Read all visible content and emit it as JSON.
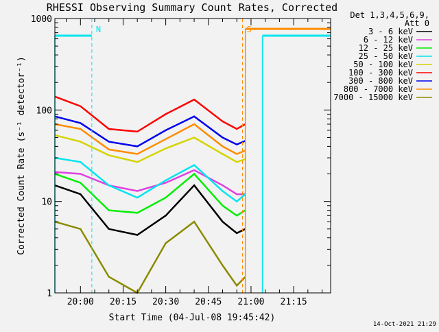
{
  "chart_data": {
    "type": "line",
    "title": "RHESSI Observing Summary Count Rates, Corrected",
    "xlabel": "Start Time (04-Jul-08 19:45:42)",
    "ylabel": "Corrected Count Rate (s⁻¹ detector⁻¹)",
    "y_scale": "log",
    "ylim": [
      1,
      1000
    ],
    "xlim": [
      "19:51",
      "21:28"
    ],
    "x_ticks": [
      "20:00",
      "20:15",
      "20:30",
      "20:45",
      "21:00",
      "21:15"
    ],
    "y_ticks": [
      "1",
      "10",
      "100",
      "1000"
    ],
    "legend_header": [
      "Det 1,3,4,5,6,9,",
      "Att 0"
    ],
    "legend_position": "right",
    "footer_timestamp": "14-Oct-2021 21:29",
    "flag_markers": [
      {
        "label": "N",
        "x": "20:04",
        "color": "#00e5ee"
      },
      {
        "label": "S",
        "x": "20:57",
        "color": "#ff8c00"
      }
    ],
    "bar_segments": [
      {
        "color": "#00e5ee",
        "y": 650,
        "from": "19:51",
        "to": "20:04"
      },
      {
        "color": "#ff8c00",
        "y": 770,
        "from": "20:58",
        "to": "21:28"
      },
      {
        "color": "#00e5ee",
        "y": 650,
        "from": "21:04",
        "to": "21:28"
      }
    ],
    "x": [
      "19:51",
      "20:00",
      "20:10",
      "20:20",
      "20:30",
      "20:40",
      "20:50",
      "20:55",
      "20:58"
    ],
    "series": [
      {
        "name": "3 - 6 keV",
        "color": "#000000",
        "values": [
          15,
          12,
          5,
          4.3,
          7,
          15,
          6,
          4.5,
          5
        ]
      },
      {
        "name": "6 - 12 keV",
        "color": "#e040e0",
        "values": [
          21,
          20,
          15,
          13,
          16,
          22,
          15,
          12,
          12
        ]
      },
      {
        "name": "12 - 25 keV",
        "color": "#00ee00",
        "values": [
          20,
          16,
          8,
          7.5,
          11,
          20,
          9,
          7,
          8
        ]
      },
      {
        "name": "25 - 50 keV",
        "color": "#00e5ee",
        "values": [
          30,
          27,
          15,
          11,
          17,
          25,
          13,
          10,
          12
        ]
      },
      {
        "name": "50 - 100 keV",
        "color": "#d4d400",
        "values": [
          53,
          45,
          32,
          27,
          38,
          50,
          33,
          27,
          29
        ]
      },
      {
        "name": "100 - 300 keV",
        "color": "#ff0000",
        "values": [
          140,
          110,
          62,
          58,
          90,
          130,
          75,
          62,
          70
        ]
      },
      {
        "name": "300 - 800 keV",
        "color": "#0000ee",
        "values": [
          85,
          72,
          45,
          40,
          60,
          85,
          50,
          42,
          46
        ]
      },
      {
        "name": "800 - 7000 keV",
        "color": "#ff8c00",
        "values": [
          70,
          62,
          37,
          33,
          48,
          70,
          40,
          33,
          36
        ]
      },
      {
        "name": "7000 - 15000 keV",
        "color": "#8b8b00",
        "values": [
          6,
          5,
          1.5,
          1,
          3.5,
          6,
          2,
          1.2,
          1.5
        ]
      }
    ]
  }
}
